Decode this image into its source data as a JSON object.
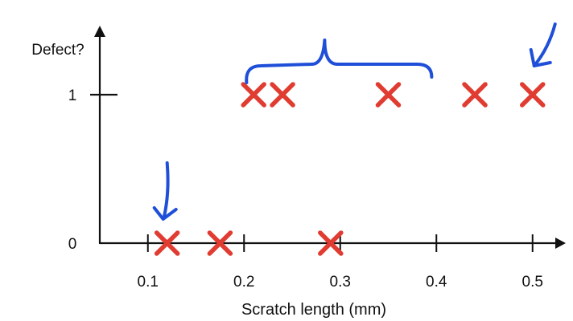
{
  "chart_data": {
    "type": "scatter",
    "title": "",
    "xlabel": "Scratch length (mm)",
    "ylabel": "Defect?",
    "xlim": [
      0.05,
      0.58
    ],
    "ylim": [
      0,
      1.4
    ],
    "x_ticks": [
      0.1,
      0.2,
      0.3,
      0.4,
      0.5
    ],
    "x_tick_labels": [
      "0.1",
      "0.2",
      "0.3",
      "0.4",
      "0.5"
    ],
    "y_ticks": [
      0,
      1
    ],
    "y_tick_labels": [
      "0",
      "1"
    ],
    "grid": false,
    "legend": "none",
    "marker": "x",
    "marker_color": "#e03c31",
    "annotation_color": "#1f4fd8",
    "points": [
      {
        "x": 0.12,
        "y": 0
      },
      {
        "x": 0.175,
        "y": 0
      },
      {
        "x": 0.29,
        "y": 0
      },
      {
        "x": 0.21,
        "y": 1
      },
      {
        "x": 0.24,
        "y": 1
      },
      {
        "x": 0.35,
        "y": 1
      },
      {
        "x": 0.44,
        "y": 1
      },
      {
        "x": 0.5,
        "y": 1
      }
    ],
    "annotations": [
      {
        "kind": "arrow-down",
        "target_x": 0.11,
        "target_y": 0
      },
      {
        "kind": "arrow-down-left",
        "target_x": 0.5,
        "target_y": 1
      },
      {
        "kind": "brace",
        "x_from": 0.17,
        "x_to": 0.37,
        "over_y": 1
      }
    ]
  }
}
